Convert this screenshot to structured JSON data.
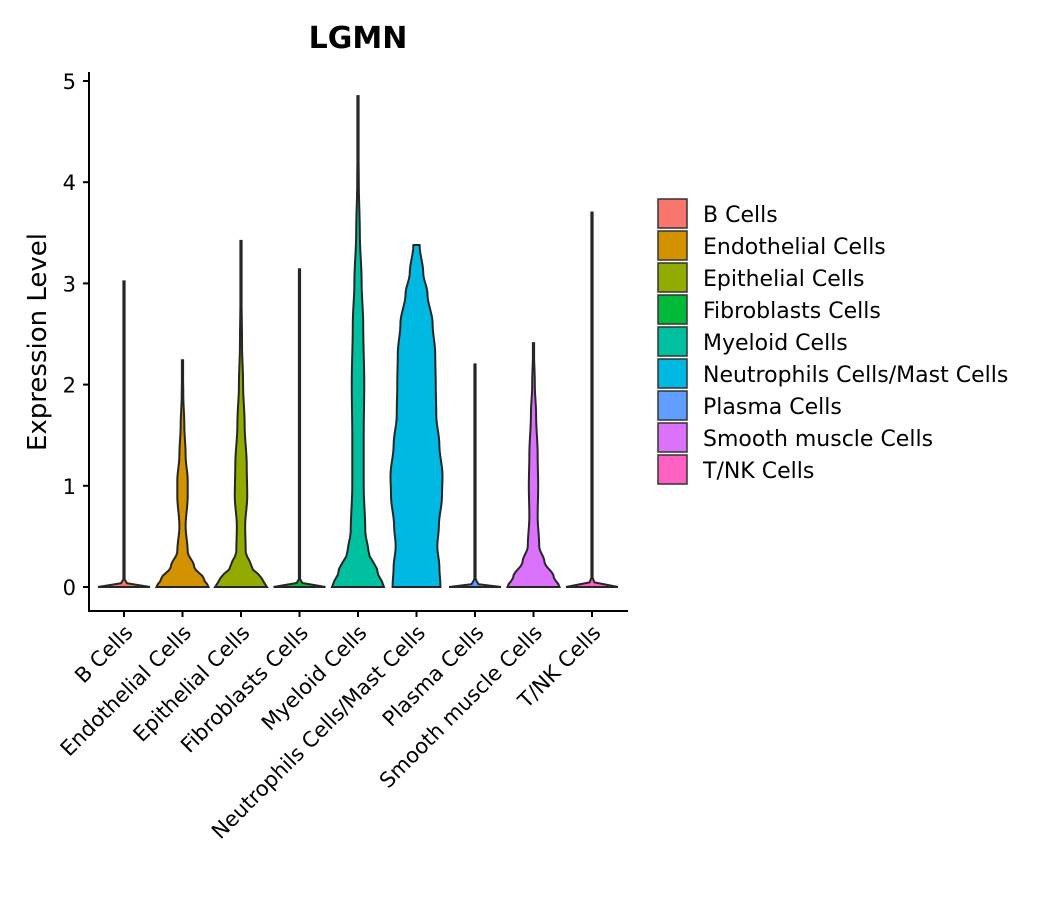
{
  "chart_data": {
    "type": "violin",
    "title": "LGMN",
    "xlabel": "",
    "ylabel": "Expression Level",
    "ylim": [
      -0.25,
      5.1
    ],
    "yticks": [
      0,
      1,
      2,
      3,
      4,
      5
    ],
    "categories": [
      "B Cells",
      "Endothelial Cells",
      "Epithelial Cells",
      "Fibroblasts Cells",
      "Myeloid Cells",
      "Neutrophils Cells/Mast Cells",
      "Plasma Cells",
      "Smooth muscle Cells",
      "T/NK Cells"
    ],
    "colors": [
      "#F8766D",
      "#D39200",
      "#93AA00",
      "#00BA38",
      "#00C19F",
      "#00B9E3",
      "#619CFF",
      "#DB72FB",
      "#FF61C3"
    ],
    "series": [
      {
        "name": "B Cells",
        "max": 3.02,
        "profile": [
          [
            0,
            1.0
          ],
          [
            0.03,
            0.12
          ],
          [
            0.08,
            0.012
          ],
          [
            0.5,
            0.01
          ],
          [
            3.02,
            0.008
          ]
        ]
      },
      {
        "name": "Endothelial Cells",
        "max": 2.24,
        "profile": [
          [
            0,
            1.0
          ],
          [
            0.08,
            0.82
          ],
          [
            0.2,
            0.45
          ],
          [
            0.35,
            0.2
          ],
          [
            0.6,
            0.12
          ],
          [
            0.9,
            0.2
          ],
          [
            1.05,
            0.2
          ],
          [
            1.3,
            0.12
          ],
          [
            1.6,
            0.07
          ],
          [
            1.9,
            0.03
          ],
          [
            2.24,
            0.01
          ]
        ]
      },
      {
        "name": "Epithelial Cells",
        "max": 3.42,
        "profile": [
          [
            0,
            1.0
          ],
          [
            0.08,
            0.8
          ],
          [
            0.2,
            0.4
          ],
          [
            0.35,
            0.18
          ],
          [
            0.6,
            0.16
          ],
          [
            0.9,
            0.24
          ],
          [
            1.2,
            0.22
          ],
          [
            1.6,
            0.14
          ],
          [
            2.0,
            0.08
          ],
          [
            2.4,
            0.04
          ],
          [
            2.9,
            0.02
          ],
          [
            3.42,
            0.01
          ]
        ]
      },
      {
        "name": "Fibroblasts Cells",
        "max": 3.14,
        "profile": [
          [
            0,
            1.0
          ],
          [
            0.03,
            0.12
          ],
          [
            0.08,
            0.012
          ],
          [
            0.5,
            0.01
          ],
          [
            3.14,
            0.008
          ]
        ]
      },
      {
        "name": "Myeloid Cells",
        "max": 4.85,
        "profile": [
          [
            0,
            1.0
          ],
          [
            0.15,
            0.75
          ],
          [
            0.35,
            0.4
          ],
          [
            0.55,
            0.28
          ],
          [
            1.0,
            0.22
          ],
          [
            1.5,
            0.22
          ],
          [
            2.0,
            0.24
          ],
          [
            2.6,
            0.2
          ],
          [
            3.0,
            0.14
          ],
          [
            3.5,
            0.07
          ],
          [
            4.0,
            0.03
          ],
          [
            4.4,
            0.015
          ],
          [
            4.85,
            0.008
          ]
        ]
      },
      {
        "name": "Neutrophils Cells/Mast Cells",
        "max": 3.38,
        "profile": [
          [
            0,
            0.92
          ],
          [
            0.2,
            0.88
          ],
          [
            0.4,
            0.8
          ],
          [
            0.6,
            0.86
          ],
          [
            0.9,
            0.98
          ],
          [
            1.1,
            1.0
          ],
          [
            1.4,
            0.88
          ],
          [
            1.7,
            0.76
          ],
          [
            2.0,
            0.74
          ],
          [
            2.3,
            0.72
          ],
          [
            2.6,
            0.62
          ],
          [
            2.9,
            0.42
          ],
          [
            3.1,
            0.26
          ],
          [
            3.38,
            0.12
          ]
        ]
      },
      {
        "name": "Plasma Cells",
        "max": 2.2,
        "profile": [
          [
            0,
            1.0
          ],
          [
            0.03,
            0.12
          ],
          [
            0.08,
            0.012
          ],
          [
            0.5,
            0.01
          ],
          [
            2.2,
            0.008
          ]
        ]
      },
      {
        "name": "Smooth muscle Cells",
        "max": 2.41,
        "profile": [
          [
            0,
            1.0
          ],
          [
            0.1,
            0.78
          ],
          [
            0.25,
            0.42
          ],
          [
            0.4,
            0.22
          ],
          [
            0.7,
            0.16
          ],
          [
            1.0,
            0.18
          ],
          [
            1.3,
            0.16
          ],
          [
            1.7,
            0.1
          ],
          [
            2.0,
            0.05
          ],
          [
            2.41,
            0.01
          ]
        ]
      },
      {
        "name": "T/NK Cells",
        "max": 3.7,
        "profile": [
          [
            0,
            1.0
          ],
          [
            0.03,
            0.12
          ],
          [
            0.08,
            0.012
          ],
          [
            0.5,
            0.01
          ],
          [
            3.7,
            0.008
          ]
        ]
      }
    ],
    "legend": {
      "position": "right",
      "entries": [
        "B Cells",
        "Endothelial Cells",
        "Epithelial Cells",
        "Fibroblasts Cells",
        "Myeloid Cells",
        "Neutrophils Cells/Mast Cells",
        "Plasma Cells",
        "Smooth muscle Cells",
        "T/NK Cells"
      ]
    },
    "grid": false
  }
}
